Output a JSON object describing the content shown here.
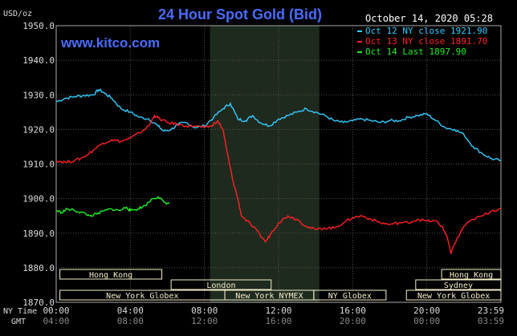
{
  "header": {
    "unit": "USD/oz",
    "title": "24 Hour Spot Gold (Bid)",
    "date": "October 14, 2020 05:28",
    "watermark": "www.kitco.com"
  },
  "colors": {
    "background": "#000000",
    "plot_bg": "#000000",
    "grid": "#555555",
    "shade": "#1f2a1f",
    "title": "#4a6cff",
    "text": "#ffffff",
    "axis_text": "#dddddd",
    "sub_axis_text": "#888888",
    "session_bg": "#f4eec8",
    "session_text": "#000000"
  },
  "chart_data": {
    "type": "line",
    "title": "24 Hour Spot Gold (Bid)",
    "ylabel": "USD/oz",
    "ylim": [
      1870,
      1950
    ],
    "xlim": [
      0,
      24
    ],
    "grid": true,
    "y_ticks": [
      "1950.0",
      "1940.0",
      "1930.0",
      "1920.0",
      "1910.0",
      "1900.0",
      "1890.0",
      "1880.0",
      "1870.0"
    ],
    "x_tick_values": [
      0,
      4,
      8,
      12,
      16,
      20,
      24
    ],
    "x_ticks_ny": [
      "00:00",
      "04:00",
      "08:00",
      "12:00",
      "16:00",
      "20:00",
      "23:59"
    ],
    "x_ticks_gmt": [
      "04:00",
      "08:00",
      "12:00",
      "16:00",
      "20:00",
      "00:00",
      "03:59"
    ],
    "x_axis_labels": [
      "NY Time",
      "GMT"
    ],
    "shaded_region": [
      8.3,
      14.2
    ],
    "legend_position": "top-right",
    "legend": [
      {
        "text": "Oct 12 NY close 1921.90",
        "color": "#33ccff"
      },
      {
        "text": "Oct 13 NY close 1891.70",
        "color": "#ff2222"
      },
      {
        "text": "Oct 14 Last 1897.90",
        "color": "#22ee22"
      }
    ],
    "series": [
      {
        "name": "Oct 12",
        "color": "#33ccff",
        "points": [
          [
            0,
            1928
          ],
          [
            0.5,
            1929
          ],
          [
            1,
            1929.5
          ],
          [
            1.5,
            1929.8
          ],
          [
            2,
            1930
          ],
          [
            2.3,
            1931.5
          ],
          [
            2.6,
            1930.5
          ],
          [
            3,
            1929
          ],
          [
            3.5,
            1926
          ],
          [
            4,
            1925
          ],
          [
            4.5,
            1923.5
          ],
          [
            5,
            1923
          ],
          [
            5.5,
            1921
          ],
          [
            5.8,
            1919.5
          ],
          [
            6.2,
            1920
          ],
          [
            6.6,
            1921.5
          ],
          [
            7,
            1922
          ],
          [
            7.5,
            1920.5
          ],
          [
            8,
            1921
          ],
          [
            8.5,
            1923.5
          ],
          [
            9,
            1926
          ],
          [
            9.4,
            1927.5
          ],
          [
            9.8,
            1923
          ],
          [
            10.2,
            1922.5
          ],
          [
            10.6,
            1924
          ],
          [
            11,
            1922
          ],
          [
            11.5,
            1921
          ],
          [
            12,
            1923
          ],
          [
            12.5,
            1924
          ],
          [
            13,
            1925
          ],
          [
            13.5,
            1926
          ],
          [
            14,
            1925
          ],
          [
            14.5,
            1924
          ],
          [
            15,
            1922.5
          ],
          [
            15.5,
            1922
          ],
          [
            16,
            1922.5
          ],
          [
            16.5,
            1923
          ],
          [
            17,
            1922.5
          ],
          [
            17.5,
            1922
          ],
          [
            18,
            1922.5
          ],
          [
            18.5,
            1922.5
          ],
          [
            19,
            1923.5
          ],
          [
            19.5,
            1924
          ],
          [
            20,
            1924.5
          ],
          [
            20.5,
            1922.5
          ],
          [
            21,
            1920.5
          ],
          [
            21.5,
            1920
          ],
          [
            22,
            1918.5
          ],
          [
            22.5,
            1915
          ],
          [
            23,
            1913
          ],
          [
            23.5,
            1911.5
          ],
          [
            24,
            1911
          ]
        ]
      },
      {
        "name": "Oct 13",
        "color": "#ff2222",
        "points": [
          [
            0,
            1911
          ],
          [
            0.5,
            1910.5
          ],
          [
            1,
            1911
          ],
          [
            1.5,
            1912
          ],
          [
            2,
            1914
          ],
          [
            2.5,
            1916
          ],
          [
            3,
            1917
          ],
          [
            3.5,
            1916.5
          ],
          [
            4,
            1917.5
          ],
          [
            4.5,
            1919
          ],
          [
            5,
            1921
          ],
          [
            5.3,
            1924
          ],
          [
            5.6,
            1923
          ],
          [
            6,
            1922
          ],
          [
            6.5,
            1921.5
          ],
          [
            7,
            1921
          ],
          [
            7.5,
            1921
          ],
          [
            8,
            1920.5
          ],
          [
            8.4,
            1921
          ],
          [
            8.7,
            1922.5
          ],
          [
            9,
            1920
          ],
          [
            9.2,
            1914
          ],
          [
            9.5,
            1906
          ],
          [
            9.8,
            1900
          ],
          [
            10,
            1895
          ],
          [
            10.5,
            1892.5
          ],
          [
            11,
            1889.5
          ],
          [
            11.3,
            1887.5
          ],
          [
            11.6,
            1890
          ],
          [
            12,
            1893
          ],
          [
            12.5,
            1895
          ],
          [
            13,
            1894
          ],
          [
            13.5,
            1892
          ],
          [
            14,
            1891
          ],
          [
            14.5,
            1891.5
          ],
          [
            15,
            1891.5
          ],
          [
            15.5,
            1893
          ],
          [
            16,
            1894.5
          ],
          [
            16.5,
            1895
          ],
          [
            17,
            1894
          ],
          [
            17.5,
            1893
          ],
          [
            18,
            1892.5
          ],
          [
            18.5,
            1893
          ],
          [
            19,
            1893
          ],
          [
            19.5,
            1894
          ],
          [
            20,
            1893.5
          ],
          [
            20.5,
            1893.5
          ],
          [
            20.8,
            1892
          ],
          [
            21.1,
            1889
          ],
          [
            21.3,
            1884
          ],
          [
            21.5,
            1887
          ],
          [
            21.8,
            1890
          ],
          [
            22,
            1892
          ],
          [
            22.5,
            1894
          ],
          [
            23,
            1895
          ],
          [
            23.5,
            1896.5
          ],
          [
            24,
            1897
          ]
        ]
      },
      {
        "name": "Oct 14",
        "color": "#22ee22",
        "points": [
          [
            0,
            1896.5
          ],
          [
            0.3,
            1896
          ],
          [
            0.6,
            1897
          ],
          [
            1,
            1896.5
          ],
          [
            1.4,
            1896
          ],
          [
            1.8,
            1895
          ],
          [
            2.2,
            1895.5
          ],
          [
            2.6,
            1896.5
          ],
          [
            3,
            1897
          ],
          [
            3.4,
            1896.5
          ],
          [
            3.8,
            1897.5
          ],
          [
            4,
            1896.5
          ],
          [
            4.4,
            1897
          ],
          [
            4.8,
            1898
          ],
          [
            5.2,
            1900
          ],
          [
            5.5,
            1900.5
          ],
          [
            5.8,
            1899
          ],
          [
            6.1,
            1898.5
          ]
        ]
      }
    ]
  },
  "sessions": [
    {
      "label": "Hong Kong",
      "start": 0.2,
      "end": 5.7,
      "row": 0
    },
    {
      "label": "London",
      "start": 6.2,
      "end": 11.6,
      "row": 1
    },
    {
      "label": "New York Globex",
      "start": 0.2,
      "end": 9.1,
      "row": 2
    },
    {
      "label": "New York NYMEX",
      "start": 9.1,
      "end": 13.9,
      "row": 2
    },
    {
      "label": "NY Globex",
      "start": 13.9,
      "end": 17.8,
      "row": 2
    },
    {
      "label": "Hong Kong",
      "start": 20.8,
      "end": 24.0,
      "row": 0
    },
    {
      "label": "Sydney",
      "start": 19.4,
      "end": 24.0,
      "row": 1
    },
    {
      "label": "New York Globex",
      "start": 18.9,
      "end": 24.0,
      "row": 2
    }
  ]
}
